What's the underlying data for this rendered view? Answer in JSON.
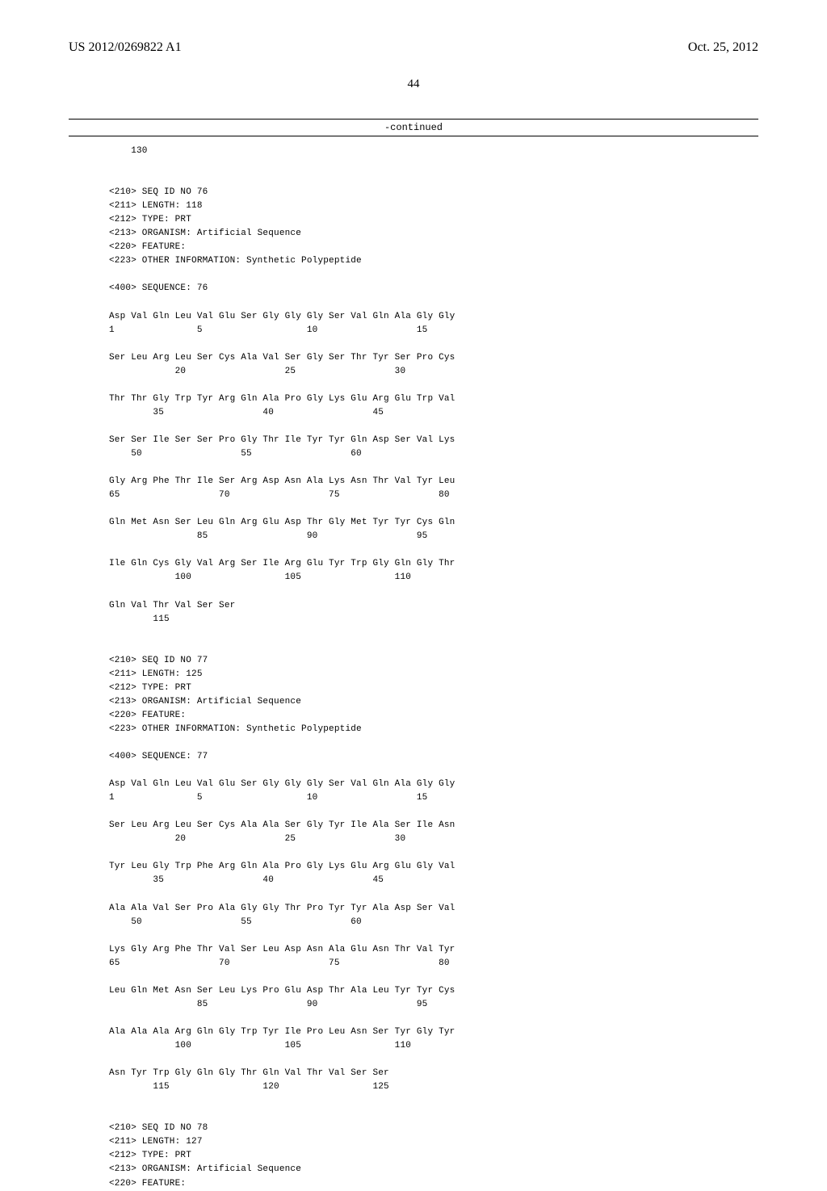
{
  "header": {
    "left": "US 2012/0269822 A1",
    "right": "Oct. 25, 2012"
  },
  "page_number": "44",
  "continued_label": "-continued",
  "body_text": "    130\n\n\n<210> SEQ ID NO 76\n<211> LENGTH: 118\n<212> TYPE: PRT\n<213> ORGANISM: Artificial Sequence\n<220> FEATURE:\n<223> OTHER INFORMATION: Synthetic Polypeptide\n\n<400> SEQUENCE: 76\n\nAsp Val Gln Leu Val Glu Ser Gly Gly Gly Ser Val Gln Ala Gly Gly\n1               5                   10                  15\n\nSer Leu Arg Leu Ser Cys Ala Val Ser Gly Ser Thr Tyr Ser Pro Cys\n            20                  25                  30\n\nThr Thr Gly Trp Tyr Arg Gln Ala Pro Gly Lys Glu Arg Glu Trp Val\n        35                  40                  45\n\nSer Ser Ile Ser Ser Pro Gly Thr Ile Tyr Tyr Gln Asp Ser Val Lys\n    50                  55                  60\n\nGly Arg Phe Thr Ile Ser Arg Asp Asn Ala Lys Asn Thr Val Tyr Leu\n65                  70                  75                  80\n\nGln Met Asn Ser Leu Gln Arg Glu Asp Thr Gly Met Tyr Tyr Cys Gln\n                85                  90                  95\n\nIle Gln Cys Gly Val Arg Ser Ile Arg Glu Tyr Trp Gly Gln Gly Thr\n            100                 105                 110\n\nGln Val Thr Val Ser Ser\n        115\n\n\n<210> SEQ ID NO 77\n<211> LENGTH: 125\n<212> TYPE: PRT\n<213> ORGANISM: Artificial Sequence\n<220> FEATURE:\n<223> OTHER INFORMATION: Synthetic Polypeptide\n\n<400> SEQUENCE: 77\n\nAsp Val Gln Leu Val Glu Ser Gly Gly Gly Ser Val Gln Ala Gly Gly\n1               5                   10                  15\n\nSer Leu Arg Leu Ser Cys Ala Ala Ser Gly Tyr Ile Ala Ser Ile Asn\n            20                  25                  30\n\nTyr Leu Gly Trp Phe Arg Gln Ala Pro Gly Lys Glu Arg Glu Gly Val\n        35                  40                  45\n\nAla Ala Val Ser Pro Ala Gly Gly Thr Pro Tyr Tyr Ala Asp Ser Val\n    50                  55                  60\n\nLys Gly Arg Phe Thr Val Ser Leu Asp Asn Ala Glu Asn Thr Val Tyr\n65                  70                  75                  80\n\nLeu Gln Met Asn Ser Leu Lys Pro Glu Asp Thr Ala Leu Tyr Tyr Cys\n                85                  90                  95\n\nAla Ala Ala Arg Gln Gly Trp Tyr Ile Pro Leu Asn Ser Tyr Gly Tyr\n            100                 105                 110\n\nAsn Tyr Trp Gly Gln Gly Thr Gln Val Thr Val Ser Ser\n        115                 120                 125\n\n\n<210> SEQ ID NO 78\n<211> LENGTH: 127\n<212> TYPE: PRT\n<213> ORGANISM: Artificial Sequence\n<220> FEATURE:"
}
